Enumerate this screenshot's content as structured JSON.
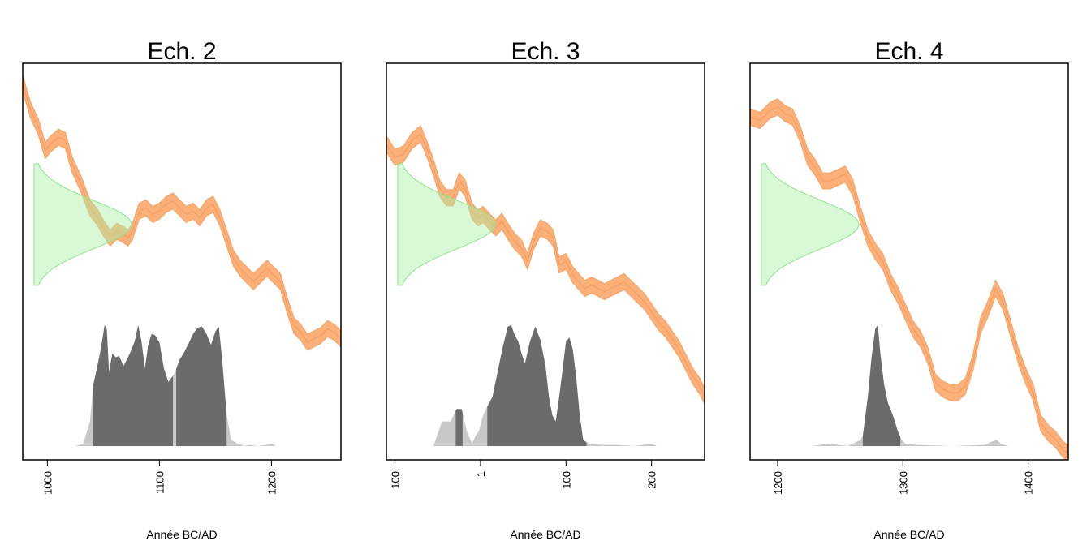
{
  "chart_data": [
    {
      "type": "area",
      "title": "Ech. 2",
      "xlabel": "Année BC/AD",
      "x_ticks": [
        "1000",
        "1100",
        "1200"
      ],
      "x_tick_values": [
        1000,
        1100,
        1200
      ],
      "xlim": [
        978,
        1262
      ],
      "measure": {
        "center": 0,
        "sd": 1
      },
      "calibration_curve": {
        "x": [
          978,
          985,
          992,
          998,
          1003,
          1010,
          1016,
          1022,
          1030,
          1038,
          1045,
          1050,
          1056,
          1062,
          1068,
          1072,
          1076,
          1082,
          1088,
          1094,
          1100,
          1106,
          1112,
          1118,
          1124,
          1130,
          1136,
          1142,
          1148,
          1154,
          1160,
          1166,
          1172,
          1178,
          1184,
          1190,
          1196,
          1202,
          1208,
          1214,
          1220,
          1226,
          1232,
          1238,
          1244,
          1250,
          1256,
          1262
        ],
        "y": [
          2.1,
          1.7,
          1.45,
          1.1,
          1.2,
          1.3,
          1.25,
          0.9,
          0.6,
          0.25,
          0.1,
          -0.05,
          -0.2,
          -0.1,
          -0.15,
          -0.2,
          -0.1,
          0.2,
          0.25,
          0.15,
          0.2,
          0.3,
          0.35,
          0.25,
          0.15,
          0.2,
          0.1,
          0.25,
          0.3,
          0.1,
          -0.2,
          -0.5,
          -0.65,
          -0.75,
          -0.85,
          -0.75,
          -0.65,
          -0.75,
          -0.85,
          -1.2,
          -1.5,
          -1.6,
          -1.75,
          -1.7,
          -1.65,
          -1.55,
          -1.6,
          -1.7
        ]
      },
      "posterior": {
        "x": [
          1025,
          1032,
          1038,
          1041,
          1044,
          1048,
          1051,
          1053,
          1055,
          1058,
          1061,
          1064,
          1068,
          1072,
          1075,
          1078,
          1081,
          1084,
          1087,
          1090,
          1093,
          1096,
          1100,
          1104,
          1108,
          1112,
          1114,
          1118,
          1122,
          1126,
          1130,
          1134,
          1138,
          1142,
          1146,
          1150,
          1153,
          1156,
          1160,
          1164,
          1170,
          1176,
          1180,
          1188,
          1196,
          1200,
          1204,
          1212
        ],
        "density": [
          0.0,
          0.02,
          0.2,
          0.5,
          0.62,
          0.8,
          0.98,
          0.95,
          0.6,
          0.75,
          0.72,
          0.73,
          0.65,
          0.72,
          0.78,
          0.85,
          0.98,
          0.85,
          0.63,
          0.82,
          0.91,
          0.9,
          0.84,
          0.63,
          0.52,
          0.57,
          0.6,
          0.7,
          0.76,
          0.83,
          0.91,
          0.96,
          0.97,
          0.91,
          0.82,
          0.93,
          0.97,
          0.7,
          0.25,
          0.05,
          0.02,
          0.0,
          0.01,
          0.0,
          0.01,
          0.02,
          0.0,
          0.0
        ],
        "hpd": [
          [
            1041,
            1112
          ],
          [
            1115,
            1160
          ]
        ]
      }
    },
    {
      "type": "area",
      "title": "Ech. 3",
      "xlabel": "Année BC/AD",
      "x_ticks": [
        "100",
        "1",
        "100",
        "200"
      ],
      "x_tick_values": [
        -100,
        0,
        100,
        200
      ],
      "xlim": [
        -110,
        262
      ],
      "measure": {
        "center": 0,
        "sd": 1
      },
      "calibration_curve": {
        "x": [
          -110,
          -100,
          -90,
          -80,
          -70,
          -62,
          -55,
          -48,
          -40,
          -32,
          -25,
          -18,
          -10,
          -3,
          3,
          10,
          18,
          25,
          32,
          40,
          48,
          55,
          62,
          70,
          78,
          85,
          92,
          100,
          108,
          115,
          122,
          130,
          138,
          145,
          152,
          160,
          168,
          176,
          184,
          192,
          200,
          208,
          216,
          224,
          232,
          240,
          248,
          256,
          262
        ],
        "y": [
          1.2,
          1.0,
          1.05,
          1.25,
          1.35,
          1.1,
          0.85,
          0.55,
          0.4,
          0.4,
          0.65,
          0.55,
          0.2,
          0.1,
          0.15,
          0.05,
          -0.05,
          0.05,
          -0.1,
          -0.25,
          -0.35,
          -0.55,
          -0.25,
          -0.05,
          -0.1,
          -0.2,
          -0.6,
          -0.55,
          -0.75,
          -0.85,
          -0.95,
          -0.9,
          -0.95,
          -1.0,
          -0.95,
          -0.9,
          -0.85,
          -0.95,
          -1.05,
          -1.15,
          -1.3,
          -1.45,
          -1.55,
          -1.7,
          -1.85,
          -2.05,
          -2.25,
          -2.4,
          -2.55
        ]
      },
      "posterior": {
        "x": [
          -55,
          -45,
          -35,
          -28,
          -22,
          -16,
          -10,
          -6,
          -2,
          3,
          8,
          14,
          20,
          26,
          32,
          36,
          40,
          44,
          48,
          52,
          58,
          64,
          70,
          76,
          80,
          84,
          88,
          92,
          96,
          100,
          104,
          108,
          112,
          116,
          120,
          124,
          128,
          140,
          160,
          180,
          200,
          206
        ],
        "density": [
          0.0,
          0.2,
          0.2,
          0.3,
          0.3,
          0.12,
          0.02,
          0.08,
          0.12,
          0.25,
          0.32,
          0.4,
          0.6,
          0.8,
          0.97,
          0.98,
          0.9,
          0.85,
          0.75,
          0.67,
          0.85,
          0.97,
          0.86,
          0.65,
          0.4,
          0.25,
          0.2,
          0.4,
          0.62,
          0.85,
          0.88,
          0.78,
          0.55,
          0.25,
          0.05,
          0.03,
          0.02,
          0.01,
          0.01,
          0.0,
          0.02,
          0.0
        ],
        "hpd": [
          [
            -29,
            -21
          ],
          [
            8,
            124
          ]
        ]
      }
    },
    {
      "type": "area",
      "title": "Ech. 4",
      "xlabel": "Année BC/AD",
      "x_ticks": [
        "1200",
        "1300",
        "1400"
      ],
      "x_tick_values": [
        1200,
        1300,
        1400
      ],
      "xlim": [
        1178,
        1432
      ],
      "measure": {
        "center": 0,
        "sd": 1
      },
      "calibration_curve": {
        "x": [
          1178,
          1186,
          1194,
          1200,
          1206,
          1212,
          1218,
          1224,
          1230,
          1236,
          1242,
          1248,
          1254,
          1260,
          1266,
          1272,
          1278,
          1284,
          1290,
          1296,
          1302,
          1308,
          1314,
          1320,
          1326,
          1332,
          1338,
          1344,
          1350,
          1356,
          1362,
          1368,
          1374,
          1380,
          1386,
          1392,
          1398,
          1404,
          1410,
          1416,
          1422,
          1428,
          1432
        ],
        "y": [
          1.6,
          1.55,
          1.7,
          1.75,
          1.65,
          1.6,
          1.35,
          1.0,
          0.85,
          0.65,
          0.65,
          0.7,
          0.75,
          0.55,
          0.15,
          -0.2,
          -0.4,
          -0.55,
          -0.85,
          -1.05,
          -1.3,
          -1.55,
          -1.7,
          -1.95,
          -2.35,
          -2.45,
          -2.5,
          -2.5,
          -2.4,
          -2.05,
          -1.5,
          -1.25,
          -0.95,
          -1.15,
          -1.55,
          -1.95,
          -2.25,
          -2.5,
          -2.95,
          -3.1,
          -3.2,
          -3.35,
          -3.4
        ]
      },
      "posterior": {
        "x": [
          1228,
          1240,
          1256,
          1266,
          1268,
          1272,
          1275,
          1278,
          1280,
          1282,
          1285,
          1288,
          1292,
          1296,
          1299,
          1302,
          1310,
          1340,
          1365,
          1372,
          1375,
          1378,
          1384
        ],
        "density": [
          0.0,
          0.02,
          0.0,
          0.05,
          0.08,
          0.4,
          0.72,
          0.95,
          0.98,
          0.75,
          0.5,
          0.35,
          0.25,
          0.12,
          0.05,
          0.02,
          0.01,
          0.0,
          0.01,
          0.04,
          0.05,
          0.02,
          0.0
        ],
        "hpd": [
          [
            1268,
            1298
          ]
        ]
      }
    }
  ]
}
